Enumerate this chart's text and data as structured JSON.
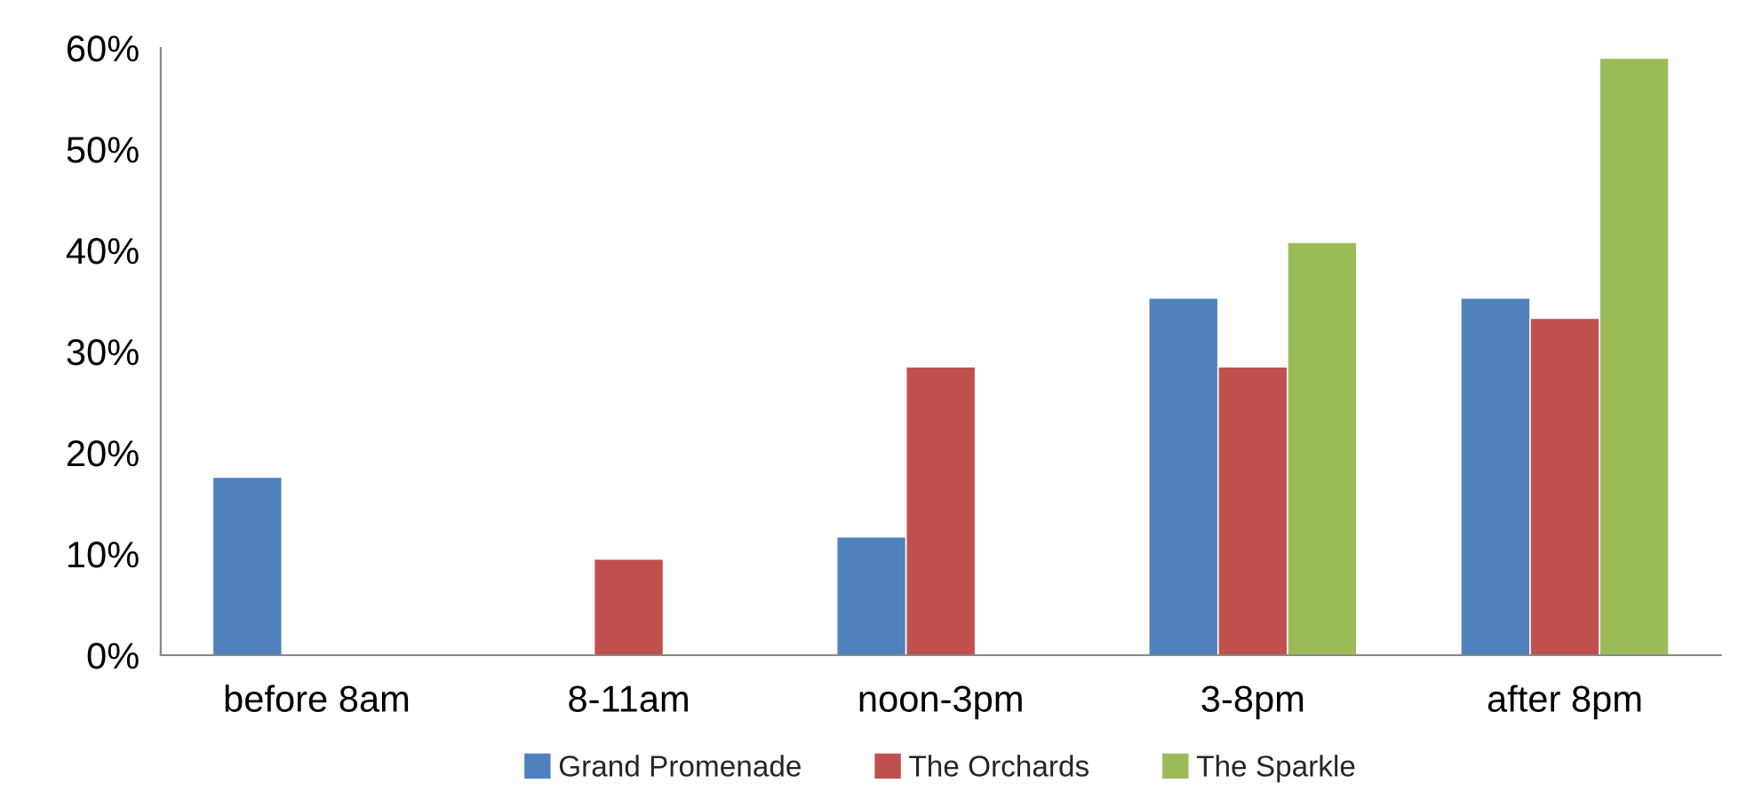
{
  "chart_data": {
    "type": "bar",
    "categories": [
      "before 8am",
      "8-11am",
      "noon-3pm",
      "3-8pm",
      "after 8pm"
    ],
    "series": [
      {
        "name": "Grand Promenade",
        "color": "#4f81bd",
        "values": [
          17.6,
          null,
          11.7,
          35.3,
          35.3
        ]
      },
      {
        "name": "The Orchards",
        "color": "#c0504d",
        "values": [
          null,
          9.5,
          28.5,
          28.5,
          33.3
        ]
      },
      {
        "name": "The Sparkle",
        "color": "#9bbb59",
        "values": [
          null,
          null,
          null,
          40.8,
          59
        ]
      }
    ],
    "ylim": [
      0,
      60
    ],
    "yticks": [
      {
        "value": 0,
        "label": "0%"
      },
      {
        "value": 10,
        "label": "10%"
      },
      {
        "value": 20,
        "label": "20%"
      },
      {
        "value": 30,
        "label": "30%"
      },
      {
        "value": 40,
        "label": "40%"
      },
      {
        "value": 50,
        "label": "50%"
      },
      {
        "value": 60,
        "label": "60%"
      }
    ],
    "grid": false,
    "legend": "bottom"
  }
}
